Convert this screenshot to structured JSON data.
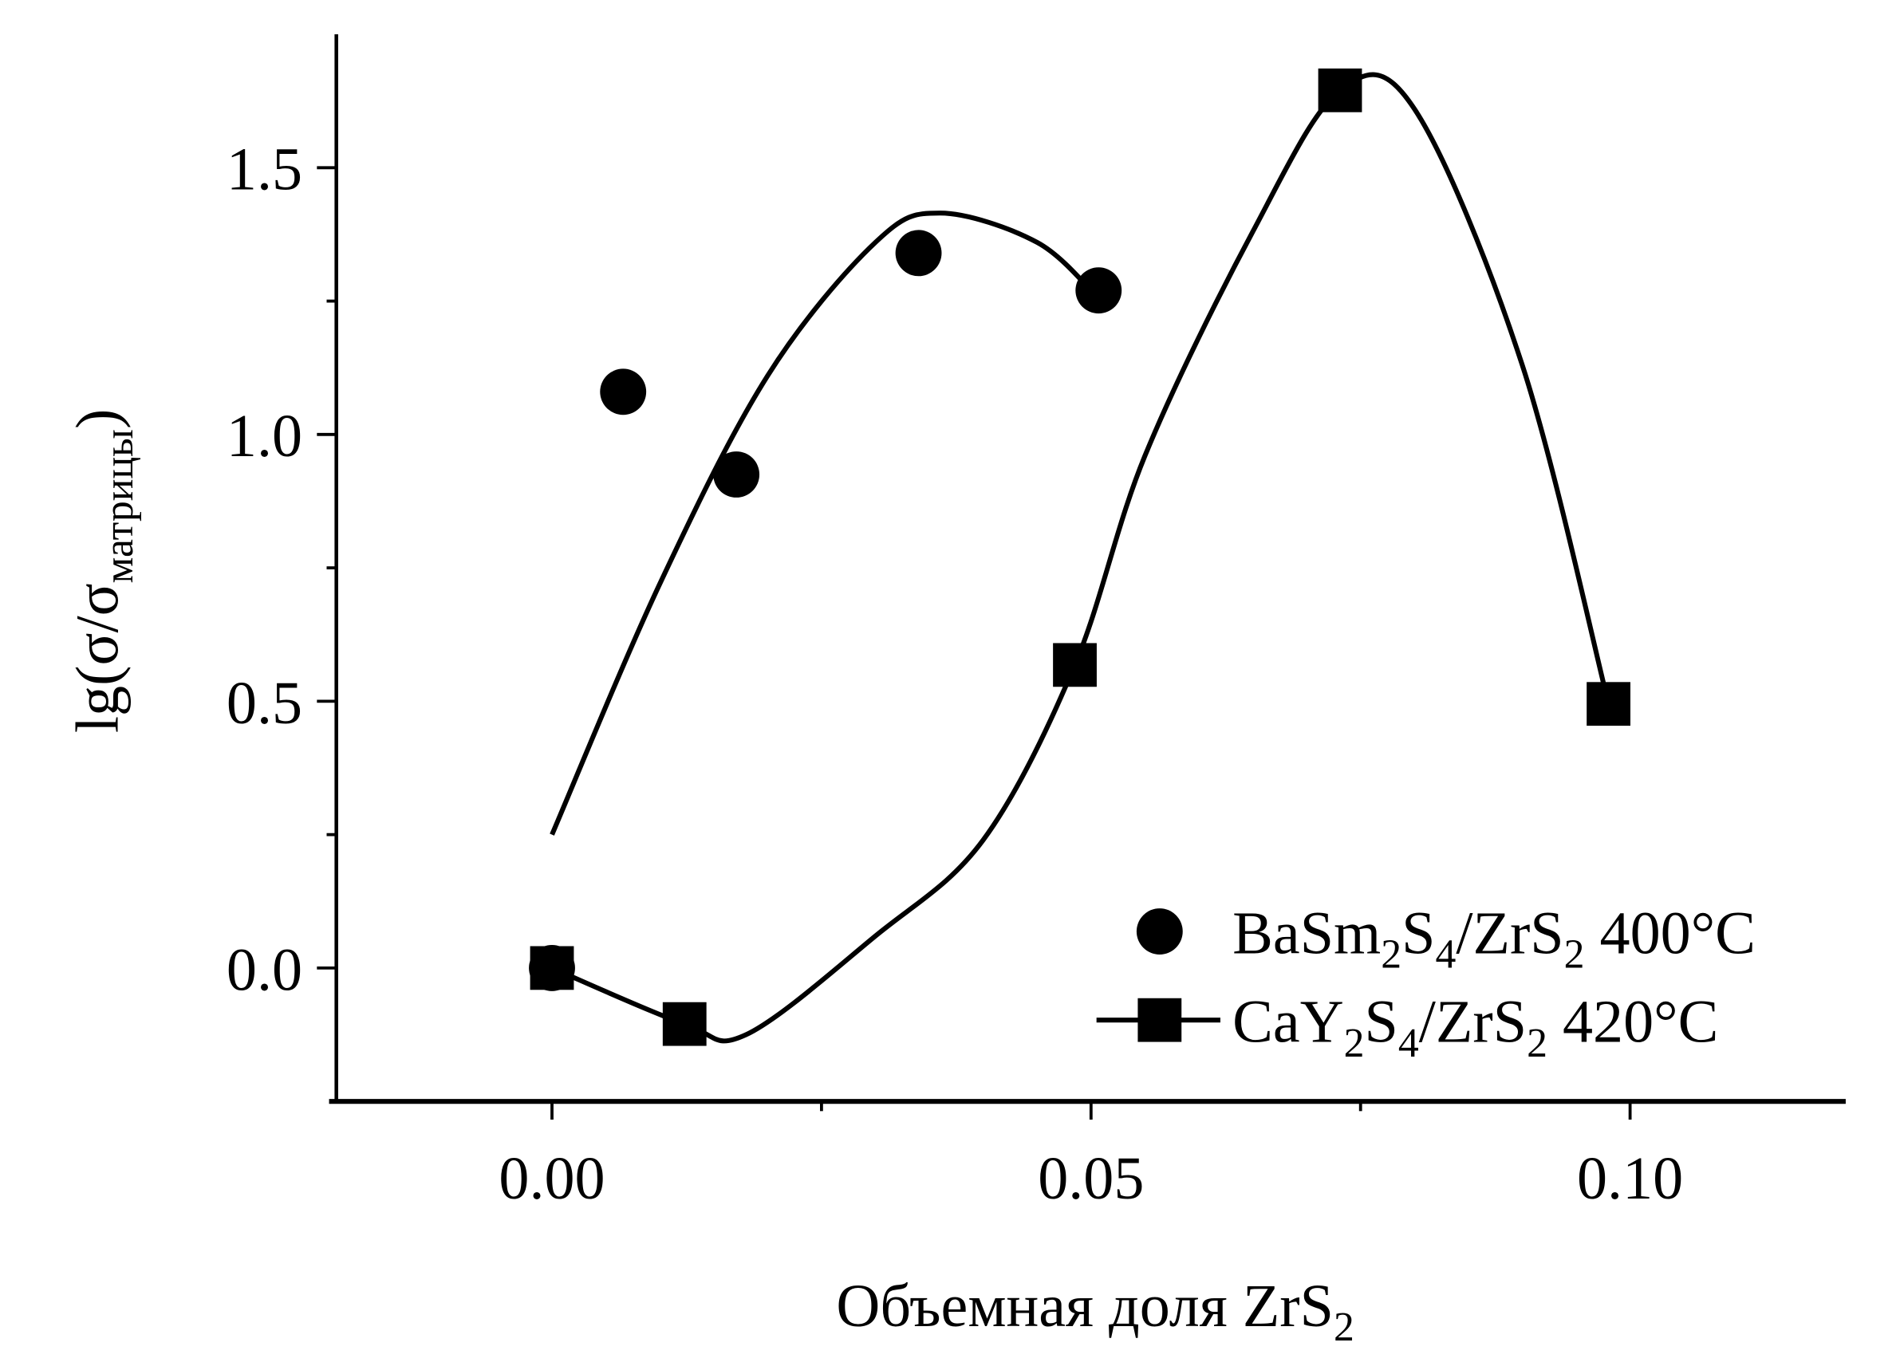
{
  "chart_data": {
    "type": "scatter",
    "title": "",
    "xlabel": {
      "text": "Объемная доля ZrS",
      "sub": "2"
    },
    "ylabel": {
      "pre": "lg(σ/σ",
      "sub": "матрицы",
      "post": ")"
    },
    "xlim": [
      -0.02,
      0.12
    ],
    "ylim": [
      -0.25,
      1.75
    ],
    "x_ticks": [
      0.0,
      0.05,
      0.1
    ],
    "x_tick_labels": [
      "0.00",
      "0.05",
      "0.10"
    ],
    "x_minor_ticks": [
      0.025,
      0.075
    ],
    "y_ticks": [
      0.0,
      0.5,
      1.0,
      1.5
    ],
    "y_tick_labels": [
      "0.0",
      "0.5",
      "1.0",
      "1.5"
    ],
    "y_minor_ticks": [
      0.25,
      0.75,
      1.25
    ],
    "grid": false,
    "legend_placement": "bottom-right",
    "series": [
      {
        "name": "BaSm2S4/ZrS2 400°C",
        "name_parts": [
          {
            "t": "BaSm"
          },
          {
            "s": "2"
          },
          {
            "t": "S"
          },
          {
            "s": "4"
          },
          {
            "t": "/ZrS"
          },
          {
            "s": "2"
          },
          {
            "t": " 400°C"
          }
        ],
        "marker": "circle",
        "color": "#000000",
        "x": [
          0.0,
          0.0066,
          0.0171,
          0.034,
          0.0507
        ],
        "y": [
          0.0,
          1.08,
          0.925,
          1.34,
          1.27
        ],
        "fit_x": [
          0.0,
          0.01,
          0.02,
          0.03,
          0.036,
          0.045,
          0.0507
        ],
        "fit_y": [
          0.25,
          0.72,
          1.11,
          1.36,
          1.415,
          1.36,
          1.255
        ]
      },
      {
        "name": "CaY2S4/ZrS2 420°C",
        "name_parts": [
          {
            "t": "CaY"
          },
          {
            "s": "2"
          },
          {
            "t": "S"
          },
          {
            "s": "4"
          },
          {
            "t": "/ZrS"
          },
          {
            "s": "2"
          },
          {
            "t": " 420°C"
          }
        ],
        "marker": "square",
        "color": "#000000",
        "x": [
          0.0,
          0.0123,
          0.0485,
          0.0731,
          0.098
        ],
        "y": [
          0.0,
          -0.105,
          0.568,
          1.645,
          0.495
        ],
        "fit_x": [
          0.0,
          0.0123,
          0.018,
          0.03,
          0.04,
          0.0485,
          0.055,
          0.065,
          0.0731,
          0.08,
          0.09,
          0.098
        ],
        "fit_y": [
          0.0,
          -0.105,
          -0.125,
          0.06,
          0.24,
          0.568,
          0.96,
          1.38,
          1.645,
          1.61,
          1.13,
          0.495
        ]
      }
    ]
  }
}
